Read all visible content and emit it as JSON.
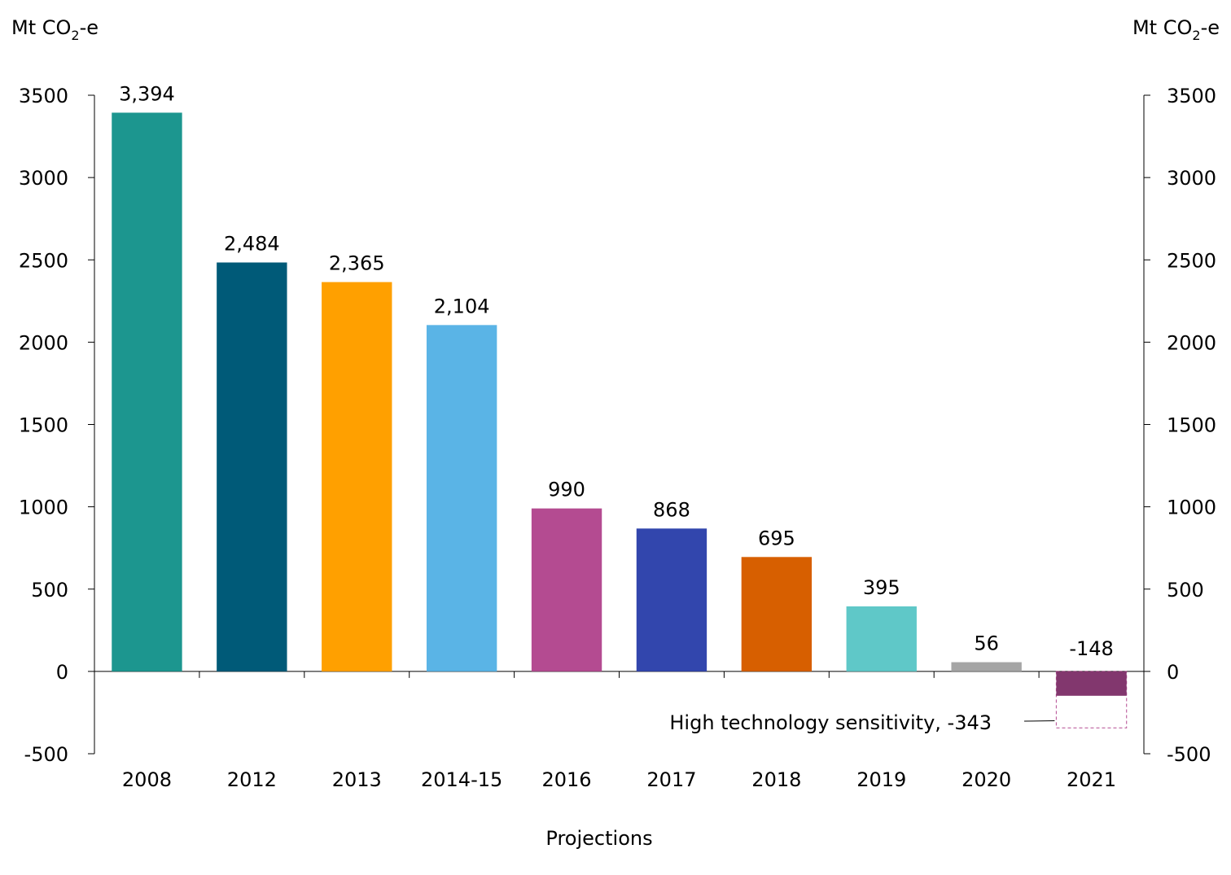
{
  "chart_data": {
    "type": "bar",
    "title": "",
    "xlabel": "Projections",
    "ylabel_left": "Mt CO2-e",
    "ylabel_right": "Mt CO2-e",
    "ylim": [
      -500,
      3500
    ],
    "yticks": [
      3500,
      3000,
      2500,
      2000,
      1500,
      1000,
      500,
      0,
      -500
    ],
    "categories": [
      "2008",
      "2012",
      "2013",
      "2014-15",
      "2016",
      "2017",
      "2018",
      "2019",
      "2020",
      "2021"
    ],
    "values": [
      3394,
      2484,
      2365,
      2104,
      990,
      868,
      695,
      395,
      56,
      -148
    ],
    "value_labels": [
      "3,394",
      "2,484",
      "2,365",
      "2,104",
      "990",
      "868",
      "695",
      "395",
      "56",
      "-148"
    ],
    "colors": [
      "#1c968f",
      "#005a78",
      "#ffa000",
      "#5ab4e6",
      "#b44b91",
      "#3246ad",
      "#d75f00",
      "#5fc8c8",
      "#a5a5a5",
      "#82376e"
    ],
    "sensitivity": {
      "category": "2021",
      "value": -343,
      "label": "High technology sensitivity, -343",
      "color": "#b44b91"
    },
    "grid": false,
    "legend": "none"
  }
}
